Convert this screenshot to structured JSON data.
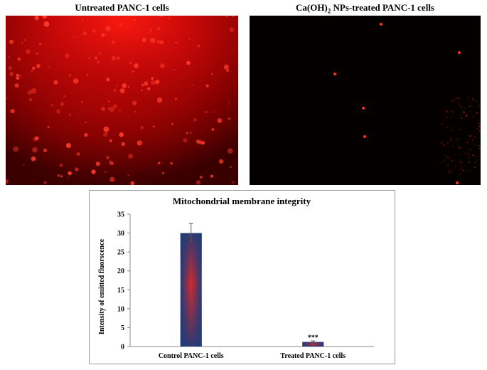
{
  "panels": [
    {
      "title_prefix": "Untreated PANC-1 cells",
      "subscript": "",
      "title_suffix": ""
    },
    {
      "title_prefix": "Ca(OH)",
      "subscript": "2",
      "title_suffix": " NPs-treated PANC-1 cells"
    }
  ],
  "chart_data": {
    "type": "bar",
    "title": "Mitochondrial membrane integrity",
    "ylabel": "Intensity of emitted fluorscence",
    "xlabel": "",
    "categories": [
      "Control PANC-1 cells",
      "Treated PANC-1 cells"
    ],
    "values": [
      30,
      1.2
    ],
    "error": [
      2.5,
      0.3
    ],
    "annotations": [
      "",
      "***"
    ],
    "ylim": [
      0,
      35
    ],
    "yticks": [
      "0",
      "5",
      "10",
      "15",
      "20",
      "25",
      "30",
      "35"
    ],
    "grid": false,
    "colors": {
      "edge": "#1f3b7a",
      "center": "#d42a2a"
    }
  }
}
